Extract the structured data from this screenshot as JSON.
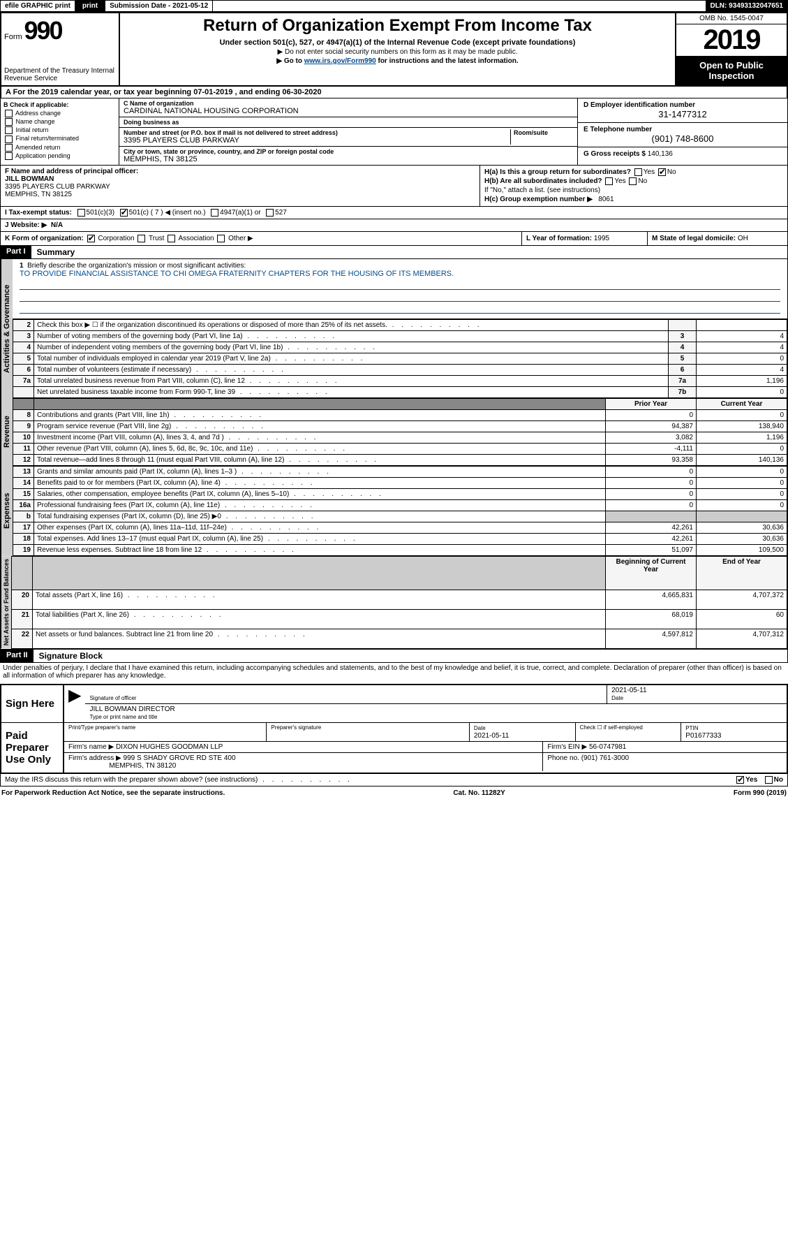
{
  "topbar": {
    "efile": "efile GRAPHIC print",
    "submission_label": "Submission Date - 2021-05-12",
    "dln": "DLN: 93493132047651"
  },
  "header": {
    "form_prefix": "Form",
    "form_number": "990",
    "dept": "Department of the Treasury Internal Revenue Service",
    "title": "Return of Organization Exempt From Income Tax",
    "subtitle": "Under section 501(c), 527, or 4947(a)(1) of the Internal Revenue Code (except private foundations)",
    "note1": "▶ Do not enter social security numbers on this form as it may be made public.",
    "note2_pre": "▶ Go to ",
    "note2_link": "www.irs.gov/Form990",
    "note2_post": " for instructions and the latest information.",
    "omb": "OMB No. 1545-0047",
    "year": "2019",
    "open": "Open to Public Inspection"
  },
  "section_a": "A For the 2019 calendar year, or tax year beginning 07-01-2019   , and ending 06-30-2020",
  "box_b": {
    "header": "B Check if applicable:",
    "items": [
      "Address change",
      "Name change",
      "Initial return",
      "Final return/terminated",
      "Amended return",
      "Application pending"
    ]
  },
  "box_c": {
    "name_label": "C Name of organization",
    "name_value": "CARDINAL NATIONAL HOUSING CORPORATION",
    "dba_label": "Doing business as",
    "dba_value": "",
    "addr_label": "Number and street (or P.O. box if mail is not delivered to street address)",
    "room_label": "Room/suite",
    "addr_value": "3395 PLAYERS CLUB PARKWAY",
    "city_label": "City or town, state or province, country, and ZIP or foreign postal code",
    "city_value": "MEMPHIS, TN  38125"
  },
  "box_d": {
    "label": "D Employer identification number",
    "value": "31-1477312"
  },
  "box_e": {
    "label": "E Telephone number",
    "value": "(901) 748-8600"
  },
  "box_g": {
    "label": "G Gross receipts $",
    "value": "140,136"
  },
  "box_f": {
    "label": "F  Name and address of principal officer:",
    "name": "JILL BOWMAN",
    "addr1": "3395 PLAYERS CLUB PARKWAY",
    "addr2": "MEMPHIS, TN  38125"
  },
  "box_h": {
    "a_label": "H(a)  Is this a group return for subordinates?",
    "a_yes": "Yes",
    "a_no": "No",
    "b_label": "H(b)  Are all subordinates included?",
    "b_yes": "Yes",
    "b_no": "No",
    "b_note": "If \"No,\" attach a list. (see instructions)",
    "c_label": "H(c)  Group exemption number ▶",
    "c_value": "8061"
  },
  "box_i": {
    "label": "I    Tax-exempt status:",
    "opts": [
      "501(c)(3)",
      "501(c) ( 7 ) ◀ (insert no.)",
      "4947(a)(1) or",
      "527"
    ]
  },
  "box_j": {
    "label": "J   Website: ▶",
    "value": "N/A"
  },
  "box_k": {
    "label": "K Form of organization:",
    "opts": [
      "Corporation",
      "Trust",
      "Association",
      "Other ▶"
    ]
  },
  "box_l": {
    "label": "L Year of formation:",
    "value": "1995"
  },
  "box_m": {
    "label": "M State of legal domicile:",
    "value": "OH"
  },
  "part1": {
    "tag": "Part I",
    "title": "Summary"
  },
  "mission": {
    "num": "1",
    "label": "Briefly describe the organization's mission or most significant activities:",
    "text": "TO PROVIDE FINANCIAL ASSISTANCE TO CHI OMEGA FRATERNITY CHAPTERS FOR THE HOUSING OF ITS MEMBERS."
  },
  "governance": {
    "heading": "Activities & Governance",
    "rows": [
      {
        "n": "2",
        "d": "Check this box ▶ ☐  if the organization discontinued its operations or disposed of more than 25% of its net assets.",
        "b": "",
        "v": ""
      },
      {
        "n": "3",
        "d": "Number of voting members of the governing body (Part VI, line 1a)",
        "b": "3",
        "v": "4"
      },
      {
        "n": "4",
        "d": "Number of independent voting members of the governing body (Part VI, line 1b)",
        "b": "4",
        "v": "4"
      },
      {
        "n": "5",
        "d": "Total number of individuals employed in calendar year 2019 (Part V, line 2a)",
        "b": "5",
        "v": "0"
      },
      {
        "n": "6",
        "d": "Total number of volunteers (estimate if necessary)",
        "b": "6",
        "v": "4"
      },
      {
        "n": "7a",
        "d": "Total unrelated business revenue from Part VIII, column (C), line 12",
        "b": "7a",
        "v": "1,196"
      },
      {
        "n": "",
        "d": "Net unrelated business taxable income from Form 990-T, line 39",
        "b": "7b",
        "v": "0"
      }
    ]
  },
  "revenue": {
    "heading": "Revenue",
    "header_prior": "Prior Year",
    "header_current": "Current Year",
    "rows": [
      {
        "n": "8",
        "d": "Contributions and grants (Part VIII, line 1h)",
        "p": "0",
        "c": "0"
      },
      {
        "n": "9",
        "d": "Program service revenue (Part VIII, line 2g)",
        "p": "94,387",
        "c": "138,940"
      },
      {
        "n": "10",
        "d": "Investment income (Part VIII, column (A), lines 3, 4, and 7d )",
        "p": "3,082",
        "c": "1,196"
      },
      {
        "n": "11",
        "d": "Other revenue (Part VIII, column (A), lines 5, 6d, 8c, 9c, 10c, and 11e)",
        "p": "-4,111",
        "c": "0"
      },
      {
        "n": "12",
        "d": "Total revenue—add lines 8 through 11 (must equal Part VIII, column (A), line 12)",
        "p": "93,358",
        "c": "140,136"
      }
    ]
  },
  "expenses": {
    "heading": "Expenses",
    "rows": [
      {
        "n": "13",
        "d": "Grants and similar amounts paid (Part IX, column (A), lines 1–3 )",
        "p": "0",
        "c": "0"
      },
      {
        "n": "14",
        "d": "Benefits paid to or for members (Part IX, column (A), line 4)",
        "p": "0",
        "c": "0"
      },
      {
        "n": "15",
        "d": "Salaries, other compensation, employee benefits (Part IX, column (A), lines 5–10)",
        "p": "0",
        "c": "0"
      },
      {
        "n": "16a",
        "d": "Professional fundraising fees (Part IX, column (A), line 11e)",
        "p": "0",
        "c": "0"
      },
      {
        "n": "b",
        "d": "Total fundraising expenses (Part IX, column (D), line 25) ▶0",
        "p": "",
        "c": ""
      },
      {
        "n": "17",
        "d": "Other expenses (Part IX, column (A), lines 11a–11d, 11f–24e)",
        "p": "42,261",
        "c": "30,636"
      },
      {
        "n": "18",
        "d": "Total expenses. Add lines 13–17 (must equal Part IX, column (A), line 25)",
        "p": "42,261",
        "c": "30,636"
      },
      {
        "n": "19",
        "d": "Revenue less expenses. Subtract line 18 from line 12",
        "p": "51,097",
        "c": "109,500"
      }
    ]
  },
  "netassets": {
    "heading": "Net Assets or Fund Balances",
    "header_begin": "Beginning of Current Year",
    "header_end": "End of Year",
    "rows": [
      {
        "n": "20",
        "d": "Total assets (Part X, line 16)",
        "p": "4,665,831",
        "c": "4,707,372"
      },
      {
        "n": "21",
        "d": "Total liabilities (Part X, line 26)",
        "p": "68,019",
        "c": "60"
      },
      {
        "n": "22",
        "d": "Net assets or fund balances. Subtract line 21 from line 20",
        "p": "4,597,812",
        "c": "4,707,312"
      }
    ]
  },
  "part2": {
    "tag": "Part II",
    "title": "Signature Block"
  },
  "perjury": "Under penalties of perjury, I declare that I have examined this return, including accompanying schedules and statements, and to the best of my knowledge and belief, it is true, correct, and complete. Declaration of preparer (other than officer) is based on all information of which preparer has any knowledge.",
  "sign_here": {
    "label": "Sign Here",
    "sig_officer": "Signature of officer",
    "date": "2021-05-11",
    "date_label": "Date",
    "name": "JILL BOWMAN  DIRECTOR",
    "name_label": "Type or print name and title"
  },
  "paid_preparer": {
    "label": "Paid Preparer Use Only",
    "h1": "Print/Type preparer's name",
    "h2": "Preparer's signature",
    "h3": "Date",
    "date": "2021-05-11",
    "h4": "Check ☐ if self-employed",
    "h5": "PTIN",
    "ptin": "P01677333",
    "firm_name_label": "Firm's name    ▶",
    "firm_name": "DIXON HUGHES GOODMAN LLP",
    "firm_ein_label": "Firm's EIN ▶",
    "firm_ein": "56-0747981",
    "firm_addr_label": "Firm's address ▶",
    "firm_addr1": "999 S SHADY GROVE RD STE 400",
    "firm_addr2": "MEMPHIS, TN  38120",
    "phone_label": "Phone no.",
    "phone": "(901) 761-3000"
  },
  "discuss": {
    "text": "May the IRS discuss this return with the preparer shown above? (see instructions)",
    "yes": "Yes",
    "no": "No"
  },
  "footer": {
    "left": "For Paperwork Reduction Act Notice, see the separate instructions.",
    "mid": "Cat. No. 11282Y",
    "right": "Form 990 (2019)"
  }
}
